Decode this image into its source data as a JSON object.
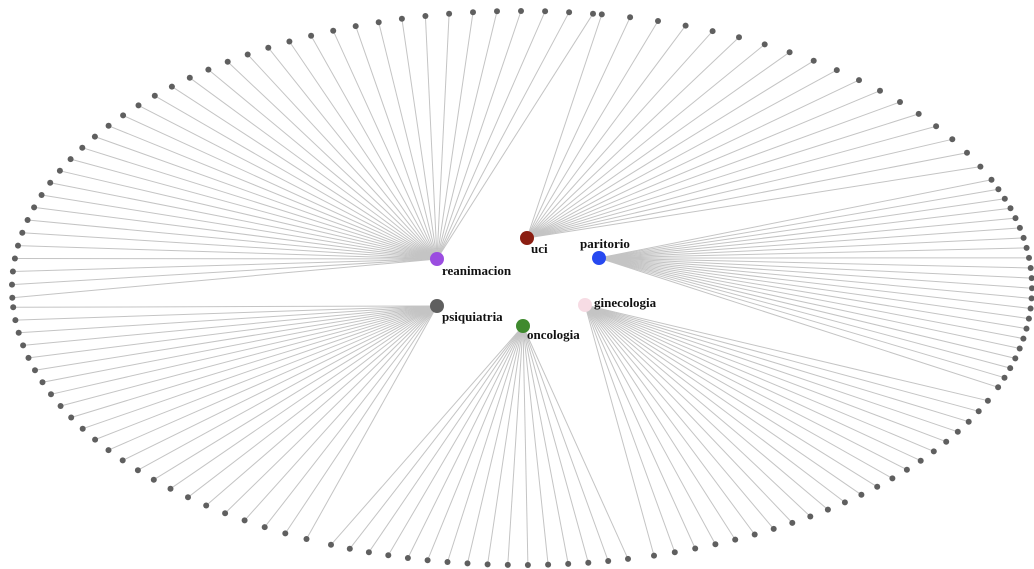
{
  "graph": {
    "edge_color": "#c4c4c4",
    "leaf_color": "#5f5f5f",
    "hubs": [
      {
        "id": "reanimacion",
        "label": "reanimacion",
        "color": "#9b4de0",
        "leaf_count": 38
      },
      {
        "id": "uci",
        "label": "uci",
        "color": "#8b1e12",
        "leaf_count": 18
      },
      {
        "id": "paritorio",
        "label": "paritorio",
        "color": "#2749f0",
        "leaf_count": 22
      },
      {
        "id": "ginecologia",
        "label": "ginecologia",
        "color": "#f7dce4",
        "leaf_count": 22
      },
      {
        "id": "oncologia",
        "label": "oncologia",
        "color": "#3f8a2e",
        "leaf_count": 16
      },
      {
        "id": "psiquiatria",
        "label": "psiquiatria",
        "color": "#5f5f5f",
        "leaf_count": 24
      }
    ]
  }
}
